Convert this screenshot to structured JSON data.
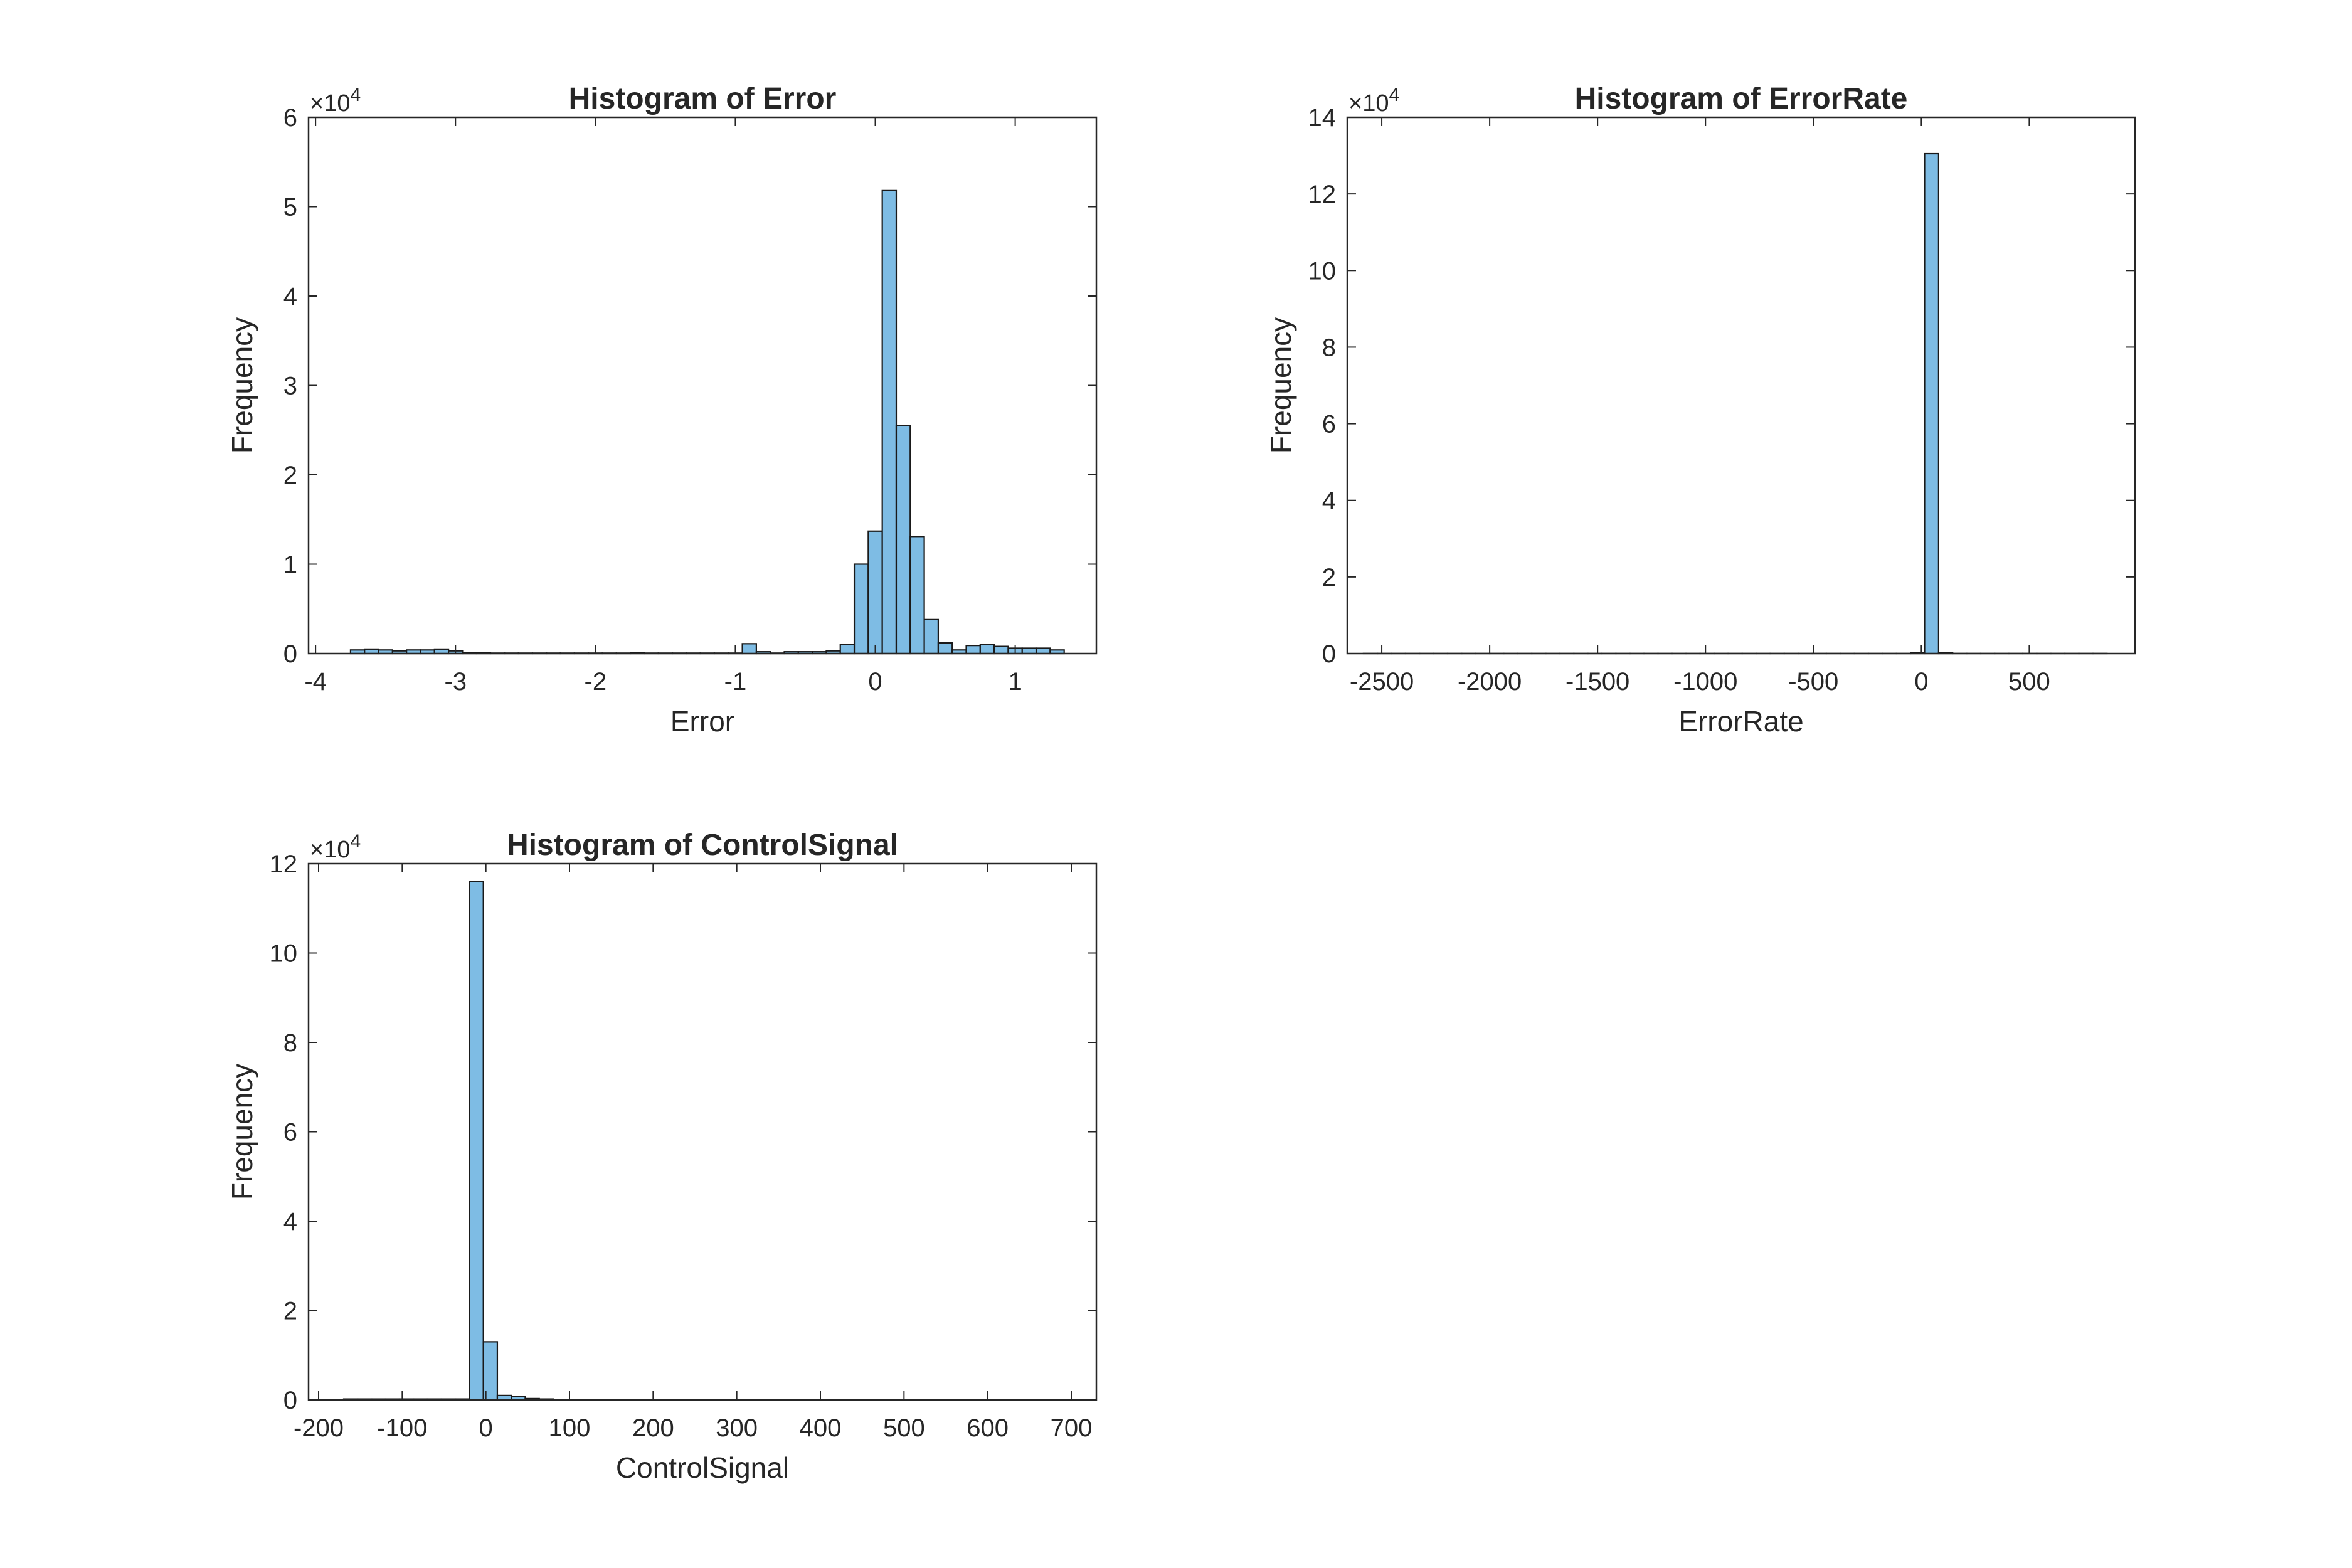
{
  "colors": {
    "bar_fill": "#7ebce4",
    "bar_edge": "#1a1a1a",
    "axis": "#262626",
    "background": "#ffffff"
  },
  "chart_data": [
    {
      "type": "bar",
      "title": "Histogram of Error",
      "xlabel": "Error",
      "ylabel": "Frequency",
      "exponent_label": "×10",
      "exponent": "4",
      "xlim": [
        -4.05,
        1.58
      ],
      "ylim": [
        0,
        6
      ],
      "xticks": [
        -4,
        -3,
        -2,
        -1,
        0,
        1
      ],
      "xtick_labels": [
        "-4",
        "-3",
        "-2",
        "-1",
        "0",
        "1"
      ],
      "yticks": [
        0,
        1,
        2,
        3,
        4,
        5,
        6
      ],
      "ytick_labels": [
        "0",
        "1",
        "2",
        "3",
        "4",
        "5",
        "6"
      ],
      "bin_start": -3.75,
      "bin_width": 0.1,
      "values": [
        0.04,
        0.05,
        0.04,
        0.03,
        0.04,
        0.04,
        0.05,
        0.03,
        0.01,
        0.01,
        0.005,
        0.005,
        0.005,
        0.005,
        0.005,
        0.005,
        0.005,
        0.005,
        0.005,
        0.005,
        0.01,
        0.005,
        0.005,
        0.005,
        0.005,
        0.005,
        0.005,
        0.005,
        0.11,
        0.02,
        0.005,
        0.02,
        0.02,
        0.02,
        0.03,
        0.1,
        1.0,
        1.37,
        5.18,
        2.55,
        1.31,
        0.38,
        0.12,
        0.04,
        0.09,
        0.1,
        0.08,
        0.06,
        0.06,
        0.06,
        0.04
      ]
    },
    {
      "type": "bar",
      "title": "Histogram of ErrorRate",
      "xlabel": "ErrorRate",
      "ylabel": "Frequency",
      "exponent_label": "×10",
      "exponent": "4",
      "xlim": [
        -2660,
        990
      ],
      "ylim": [
        0,
        14
      ],
      "xticks": [
        -2500,
        -2000,
        -1500,
        -1000,
        -500,
        0,
        500
      ],
      "xtick_labels": [
        "-2500",
        "-2000",
        "-1500",
        "-1000",
        "-500",
        "0",
        "500"
      ],
      "yticks": [
        0,
        2,
        4,
        6,
        8,
        10,
        12,
        14
      ],
      "ytick_labels": [
        "0",
        "2",
        "4",
        "6",
        "8",
        "10",
        "12",
        "14"
      ],
      "bin_start": -2585,
      "bin_width": 65,
      "values": [
        0.003,
        0.003,
        0.003,
        0.003,
        0.003,
        0.003,
        0.003,
        0.003,
        0.003,
        0.003,
        0.003,
        0.003,
        0.003,
        0.003,
        0.003,
        0.003,
        0.003,
        0.003,
        0.003,
        0.003,
        0.003,
        0.003,
        0.003,
        0.003,
        0.003,
        0.003,
        0.003,
        0.003,
        0.003,
        0.003,
        0.003,
        0.003,
        0.003,
        0.003,
        0.003,
        0.003,
        0.003,
        0.003,
        0.003,
        0.02,
        13.05,
        0.02,
        0.003,
        0.003,
        0.003,
        0.003,
        0.003,
        0.003,
        0.003,
        0.003,
        0.003,
        0.003,
        0.003
      ]
    },
    {
      "type": "bar",
      "title": "Histogram of ControlSignal",
      "xlabel": "ControlSignal",
      "ylabel": "Frequency",
      "exponent_label": "×10",
      "exponent": "4",
      "xlim": [
        -212,
        730
      ],
      "ylim": [
        0,
        12
      ],
      "xticks": [
        -200,
        -100,
        0,
        100,
        200,
        300,
        400,
        500,
        600,
        700
      ],
      "xtick_labels": [
        "-200",
        "-100",
        "0",
        "100",
        "200",
        "300",
        "400",
        "500",
        "600",
        "700"
      ],
      "yticks": [
        0,
        2,
        4,
        6,
        8,
        10,
        12
      ],
      "ytick_labels": [
        "0",
        "2",
        "4",
        "6",
        "8",
        "10",
        "12"
      ],
      "bin_start": -170,
      "bin_width": 16.7,
      "values": [
        0.02,
        0.02,
        0.02,
        0.02,
        0.02,
        0.02,
        0.02,
        0.02,
        0.02,
        11.6,
        1.3,
        0.1,
        0.08,
        0.03,
        0.02,
        0.01,
        0.01,
        0.01,
        0.005,
        0.005,
        0.005,
        0.005,
        0.005,
        0.005,
        0.005,
        0.005,
        0.005,
        0.005,
        0.005,
        0.005,
        0.005,
        0.005,
        0.005,
        0.005,
        0.005,
        0.005,
        0.005,
        0.005,
        0.005,
        0.005,
        0.005,
        0.005,
        0.005,
        0.005,
        0.005,
        0.005,
        0.005,
        0.005,
        0.005,
        0.005,
        0.005,
        0.005
      ]
    }
  ]
}
